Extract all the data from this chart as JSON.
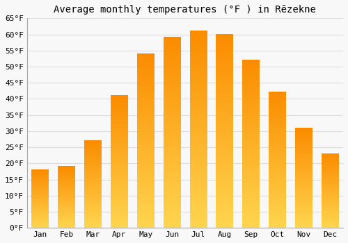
{
  "title": "Average monthly temperatures (°F ) in Rēzekne",
  "months": [
    "Jan",
    "Feb",
    "Mar",
    "Apr",
    "May",
    "Jun",
    "Jul",
    "Aug",
    "Sep",
    "Oct",
    "Nov",
    "Dec"
  ],
  "values": [
    18,
    19,
    27,
    41,
    54,
    59,
    61,
    60,
    52,
    42,
    31,
    23
  ],
  "bar_color": "#FFA726",
  "bar_bottom_color": "#FFD54F",
  "bar_top_color": "#FB8C00",
  "ylim": [
    0,
    65
  ],
  "yticks": [
    0,
    5,
    10,
    15,
    20,
    25,
    30,
    35,
    40,
    45,
    50,
    55,
    60,
    65
  ],
  "ylabel_suffix": "°F",
  "background_color": "#f8f8f8",
  "grid_color": "#dddddd",
  "title_fontsize": 10,
  "tick_fontsize": 8,
  "bar_width": 0.65
}
